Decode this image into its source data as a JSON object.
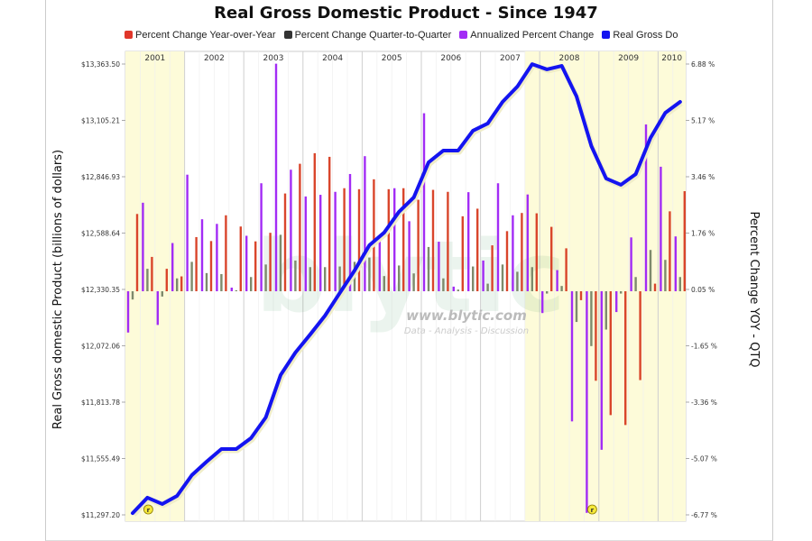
{
  "chart_data": {
    "type": "bar+line",
    "title": "Real Gross Domestic Product - Since 1947",
    "legend": [
      "Percent Change Year-over-Year",
      "Percent Change Quarter-to-Quarter",
      "Annualized Percent Change",
      "Real Gross Do"
    ],
    "legend_placement": "top",
    "ylabel_left": "Real Gross domestic Product (billions of dollars)",
    "ylabel_right": "Percent Change YOY - QTQ",
    "ylim_left": [
      11297.2,
      13363.5
    ],
    "ylim_right": [
      -6.77,
      6.88
    ],
    "left_ticks": [
      "$13,363.50",
      "$13,105.21",
      "$12,846.93",
      "$12,588.64",
      "$12,330.35",
      "$12,072.06",
      "$11,813.78",
      "$11,555.49",
      "$11,297.20"
    ],
    "right_ticks": [
      "6.88 %",
      "5.17 %",
      "3.46 %",
      "1.76 %",
      "0.05 %",
      "-1.65 %",
      "-3.36 %",
      "-5.07 %",
      "-6.77 %"
    ],
    "years": [
      "2001",
      "2002",
      "2003",
      "2004",
      "2005",
      "2006",
      "2007",
      "2008",
      "2009",
      "2010"
    ],
    "categories": [
      "2001Q1",
      "2001Q2",
      "2001Q3",
      "2001Q4",
      "2002Q1",
      "2002Q2",
      "2002Q3",
      "2002Q4",
      "2003Q1",
      "2003Q2",
      "2003Q3",
      "2003Q4",
      "2004Q1",
      "2004Q2",
      "2004Q3",
      "2004Q4",
      "2005Q1",
      "2005Q2",
      "2005Q3",
      "2005Q4",
      "2006Q1",
      "2006Q2",
      "2006Q3",
      "2006Q4",
      "2007Q1",
      "2007Q2",
      "2007Q3",
      "2007Q4",
      "2008Q1",
      "2008Q2",
      "2008Q3",
      "2008Q4",
      "2009Q1",
      "2009Q2",
      "2009Q3",
      "2009Q4",
      "2010Q1",
      "2010Q2"
    ],
    "recession_shading": [
      [
        "2001Q1",
        "2001Q4"
      ],
      [
        "2007Q4",
        "2010Q2"
      ]
    ],
    "grid": true,
    "series": [
      {
        "name": "Percent Change Year-over-Year",
        "axis": "right",
        "kind": "bar",
        "color": "#d9452b",
        "values": [
          2.34,
          1.04,
          0.68,
          0.45,
          1.64,
          1.52,
          2.3,
          1.96,
          1.51,
          1.77,
          2.96,
          3.86,
          4.18,
          4.07,
          3.12,
          3.09,
          3.39,
          3.09,
          3.12,
          2.77,
          3.07,
          3.01,
          2.27,
          2.5,
          1.39,
          1.82,
          2.37,
          2.36,
          1.95,
          1.3,
          -0.27,
          -2.71,
          -3.75,
          -4.05,
          -2.69,
          0.23,
          2.42,
          3.03
        ]
      },
      {
        "name": "Percent Change Quarter-to-Quarter",
        "axis": "right",
        "kind": "bar",
        "color": "#7d8a6c",
        "values": [
          -0.25,
          0.68,
          -0.16,
          0.39,
          0.89,
          0.55,
          0.52,
          0.03,
          0.43,
          0.81,
          1.71,
          0.93,
          0.73,
          0.73,
          0.75,
          0.89,
          1.02,
          0.46,
          0.78,
          0.54,
          1.34,
          0.39,
          0.05,
          0.75,
          0.23,
          0.81,
          0.59,
          0.73,
          -0.07,
          0.16,
          -0.93,
          -1.66,
          -1.16,
          -0.07,
          0.43,
          1.25,
          0.95,
          0.43
        ]
      },
      {
        "name": "Annualized Percent Change",
        "axis": "right",
        "kind": "bar",
        "color": "#a22cf5",
        "values": [
          -1.25,
          2.68,
          -1.02,
          1.46,
          3.53,
          2.18,
          2.04,
          0.11,
          1.68,
          3.27,
          6.89,
          3.68,
          2.87,
          2.92,
          3.01,
          3.55,
          4.09,
          1.57,
          3.12,
          2.12,
          5.39,
          1.5,
          0.14,
          3.0,
          0.93,
          3.27,
          2.3,
          2.93,
          -0.66,
          0.64,
          -3.94,
          -6.71,
          -4.8,
          -0.63,
          1.63,
          5.05,
          3.77,
          1.66
        ]
      },
      {
        "name": "Real Gross Do",
        "axis": "left",
        "kind": "line",
        "color": "#1414f0",
        "values": [
          11305,
          11376,
          11347,
          11384,
          11479,
          11541,
          11599,
          11599,
          11649,
          11744,
          11938,
          12041,
          12124,
          12210,
          12314,
          12417,
          12533,
          12591,
          12686,
          12752,
          12913,
          12967,
          12967,
          13058,
          13091,
          13190,
          13260,
          13363,
          13339,
          13355,
          13215,
          12988,
          12839,
          12810,
          12859,
          13025,
          13140,
          13190
        ]
      }
    ],
    "annotations": [
      {
        "at": "2001Q2",
        "label": "r"
      },
      {
        "at": "2008Q4",
        "label": "r"
      }
    ]
  },
  "watermark": {
    "logo": "blytic",
    "url": "www.blytic.com",
    "tagline": "Data - Analysis - Discussion"
  },
  "colors": {
    "shading": "#fdfbd9",
    "grid": "#e2e2e2",
    "year_grid": "#cfcfcf"
  }
}
